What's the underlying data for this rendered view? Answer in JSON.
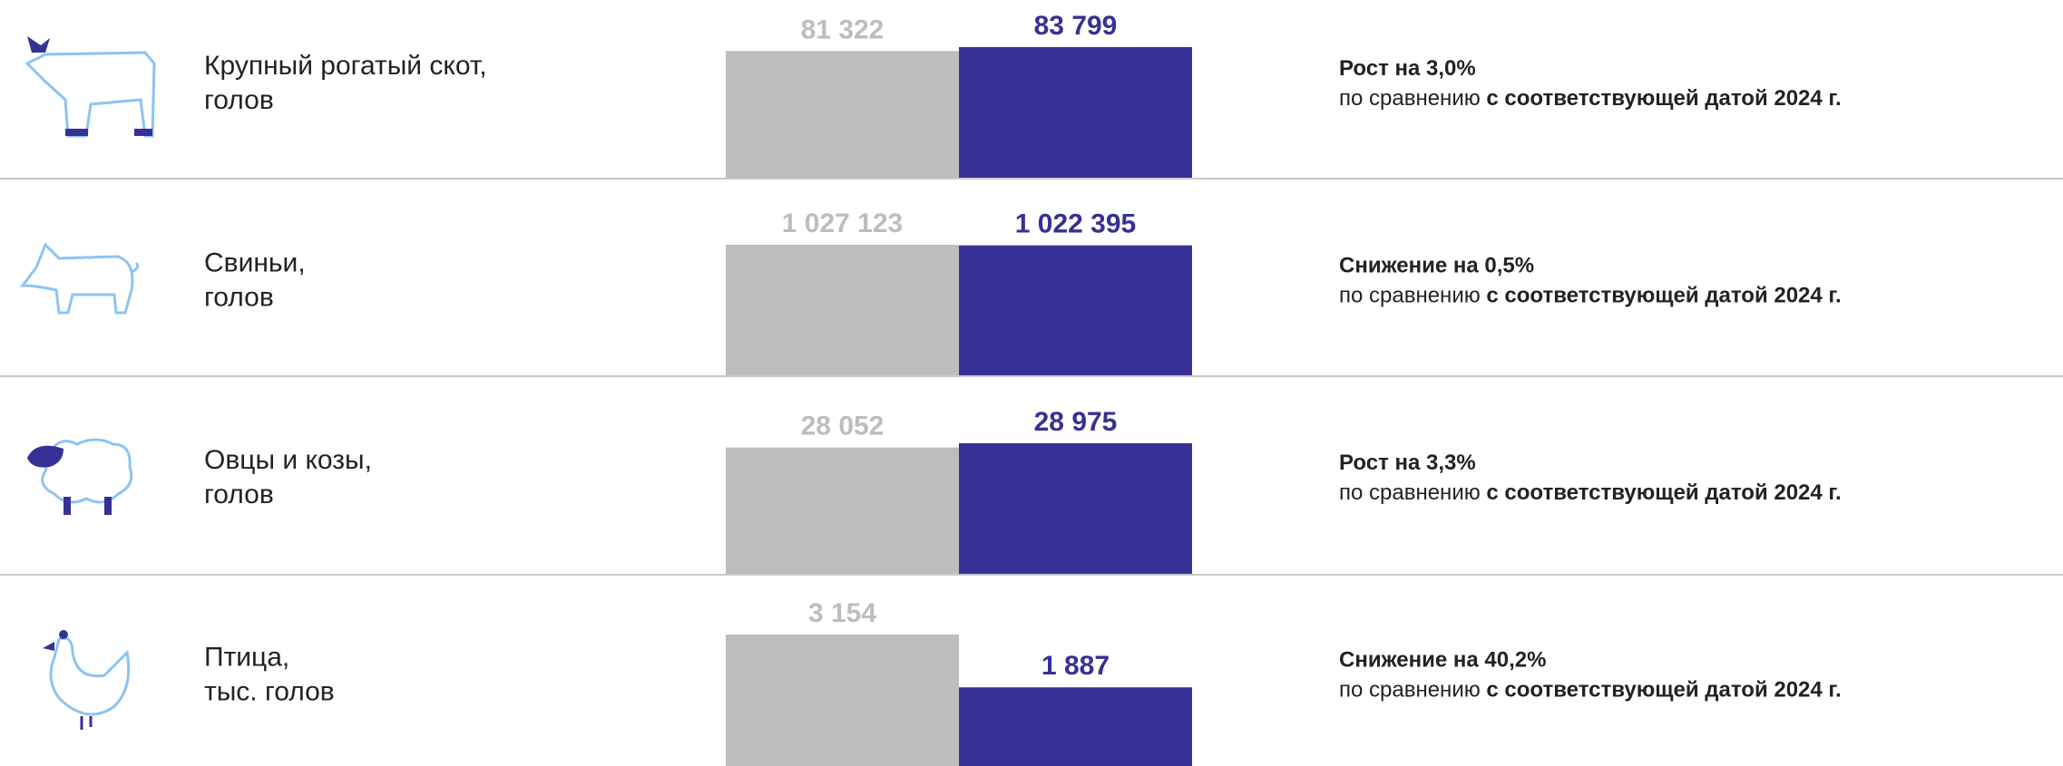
{
  "rows": [
    {
      "label": [
        "Крупный рогатый скот,",
        "голов"
      ],
      "values": [
        81322,
        83799
      ],
      "value_labels": [
        "81 322",
        "83 799"
      ],
      "change": "Рост на 3,0%",
      "comparison": "по сравнению",
      "comparison_bold": "с соответствующей датой 2024 г."
    },
    {
      "label": [
        "Свиньи,",
        "голов"
      ],
      "values": [
        1027123,
        1022395
      ],
      "value_labels": [
        "1 027 123",
        "1 022 395"
      ],
      "change": "Снижение на 0,5%",
      "comparison": "по сравнению",
      "comparison_bold": "с соответствующей датой 2024 г."
    },
    {
      "label": [
        "Овцы и козы,",
        "голов"
      ],
      "values": [
        28052,
        28975
      ],
      "value_labels": [
        "28 052",
        "28 975"
      ],
      "change": "Рост на 3,3%",
      "comparison": "по сравнению",
      "comparison_bold": "с соответствующей датой 2024 г."
    },
    {
      "label": [
        "Птица,",
        "тыс. голов"
      ],
      "values": [
        3154,
        1887
      ],
      "value_labels": [
        "3 154",
        "1 887"
      ],
      "change": "Снижение на 40,2%",
      "comparison": "по сравнению",
      "comparison_bold": "с соответствующей датой 2024 г."
    }
  ],
  "colors": [
    "#bdbdbd",
    "#373096"
  ]
}
